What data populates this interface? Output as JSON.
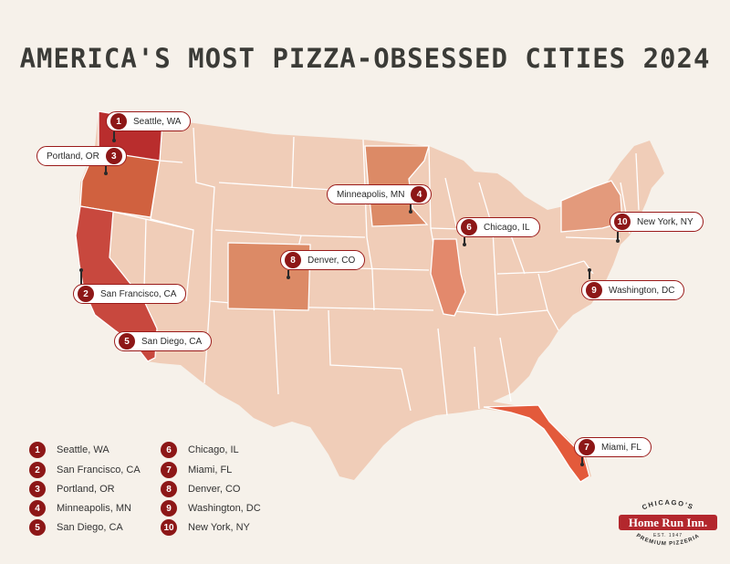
{
  "title": "AMERICA'S MOST PIZZA-OBSESSED CITIES 2024",
  "colors": {
    "background": "#f6f1ea",
    "land_base": "#f0cdb8",
    "state_border": "#ffffff",
    "rank_1": "#b92d2d",
    "rank_2_5": "#c8483e",
    "rank_3": "#d0613f",
    "rank_4_8": "#dc8a66",
    "rank_6_9": "#e3896c",
    "rank_7": "#e35a3b",
    "rank_10": "#e39a7c",
    "badge": "#8d1717"
  },
  "pins": [
    {
      "rank": "1",
      "label": "Seattle, WA"
    },
    {
      "rank": "2",
      "label": "San Francisco, CA"
    },
    {
      "rank": "3",
      "label": "Portland, OR"
    },
    {
      "rank": "4",
      "label": "Minneapolis, MN"
    },
    {
      "rank": "5",
      "label": "San Diego, CA"
    },
    {
      "rank": "6",
      "label": "Chicago, IL"
    },
    {
      "rank": "7",
      "label": "Miami, FL"
    },
    {
      "rank": "8",
      "label": "Denver, CO"
    },
    {
      "rank": "9",
      "label": "Washington, DC"
    },
    {
      "rank": "10",
      "label": "New York, NY"
    }
  ],
  "legend": [
    {
      "rank": "1",
      "label": "Seattle, WA"
    },
    {
      "rank": "2",
      "label": "San Francisco, CA"
    },
    {
      "rank": "3",
      "label": "Portland, OR"
    },
    {
      "rank": "4",
      "label": "Minneapolis, MN"
    },
    {
      "rank": "5",
      "label": "San Diego, CA"
    },
    {
      "rank": "6",
      "label": "Chicago, IL"
    },
    {
      "rank": "7",
      "label": "Miami, FL"
    },
    {
      "rank": "8",
      "label": "Denver, CO"
    },
    {
      "rank": "9",
      "label": "Washington, DC"
    },
    {
      "rank": "10",
      "label": "New York, NY"
    }
  ],
  "logo": {
    "top_text": "CHICAGO'S",
    "brand": "Home Run Inn.",
    "est": "EST. 1947",
    "bottom_text": "PREMIUM PIZZERIA"
  }
}
